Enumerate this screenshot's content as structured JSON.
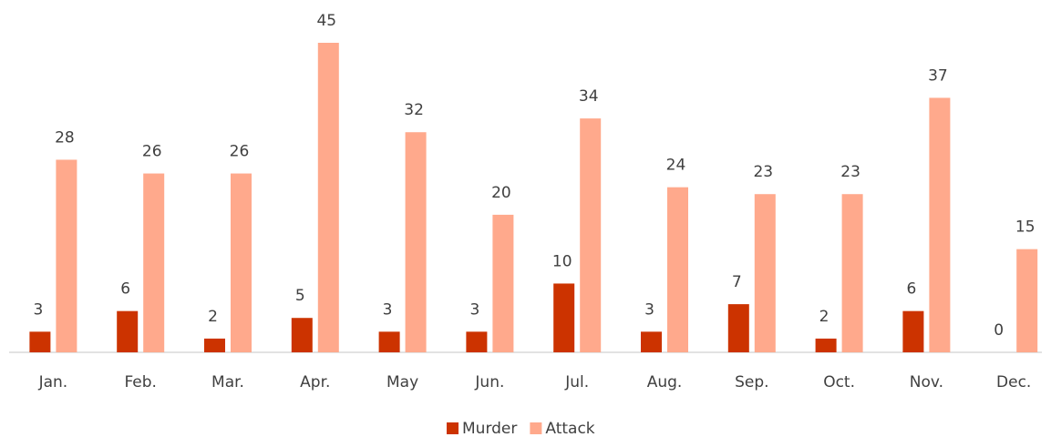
{
  "chart_data": {
    "type": "bar",
    "categories": [
      "Jan.",
      "Feb.",
      "Mar.",
      "Apr.",
      "May",
      "Jun.",
      "Jul.",
      "Aug.",
      "Sep.",
      "Oct.",
      "Nov.",
      "Dec."
    ],
    "series": [
      {
        "name": "Murder",
        "color": "#cc3300",
        "values": [
          3,
          6,
          2,
          5,
          3,
          3,
          10,
          3,
          7,
          2,
          6,
          0
        ]
      },
      {
        "name": "Attack",
        "color": "#ffa98c",
        "values": [
          28,
          26,
          26,
          45,
          32,
          20,
          34,
          24,
          23,
          23,
          37,
          15
        ]
      }
    ],
    "legend": "bottom"
  }
}
